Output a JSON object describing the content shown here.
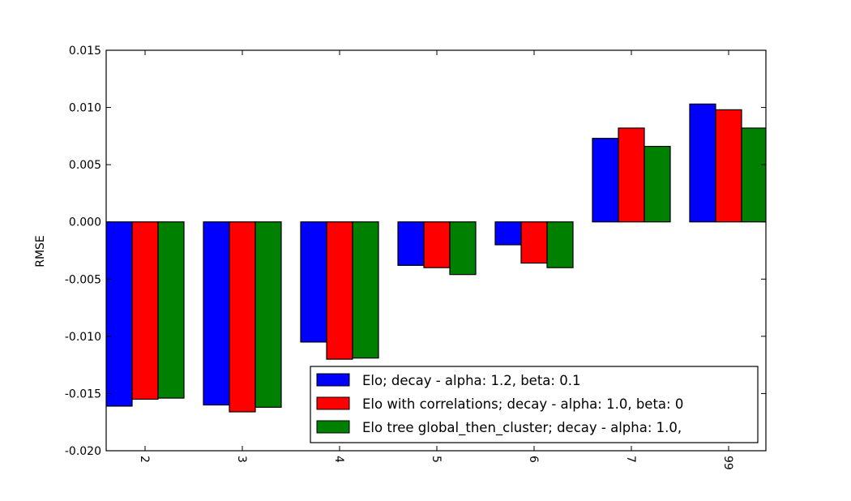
{
  "chart_data": {
    "type": "bar",
    "title": "",
    "xlabel": "",
    "ylabel": "RMSE",
    "categories": [
      "2",
      "3",
      "4",
      "5",
      "6",
      "7",
      "99"
    ],
    "ylim": [
      -0.02,
      0.015
    ],
    "yticks": [
      "0.015",
      "0.010",
      "0.005",
      "0.000",
      "-0.005",
      "-0.010",
      "-0.015",
      "-0.020"
    ],
    "ytick_values": [
      0.015,
      0.01,
      0.005,
      0.0,
      -0.005,
      -0.01,
      -0.015,
      -0.02
    ],
    "xtick_rotation": "rotated 90° clockwise",
    "grid": false,
    "legend_position": "lower-right",
    "series": [
      {
        "name": "Elo; decay - alpha: 1.2, beta: 0.1",
        "color": "#0000ff",
        "values": [
          -0.0161,
          -0.016,
          -0.0105,
          -0.0038,
          -0.002,
          0.0073,
          0.0103
        ]
      },
      {
        "name": "Elo with correlations; decay - alpha: 1.0, beta: 0",
        "color": "#ff0000",
        "values": [
          -0.0155,
          -0.0166,
          -0.012,
          -0.004,
          -0.0036,
          0.0082,
          0.0098
        ]
      },
      {
        "name": "Elo tree global_then_cluster; decay - alpha: 1.0,",
        "color": "#008000",
        "values": [
          -0.0154,
          -0.0162,
          -0.0119,
          -0.0046,
          -0.004,
          0.0066,
          0.0082
        ]
      }
    ]
  }
}
